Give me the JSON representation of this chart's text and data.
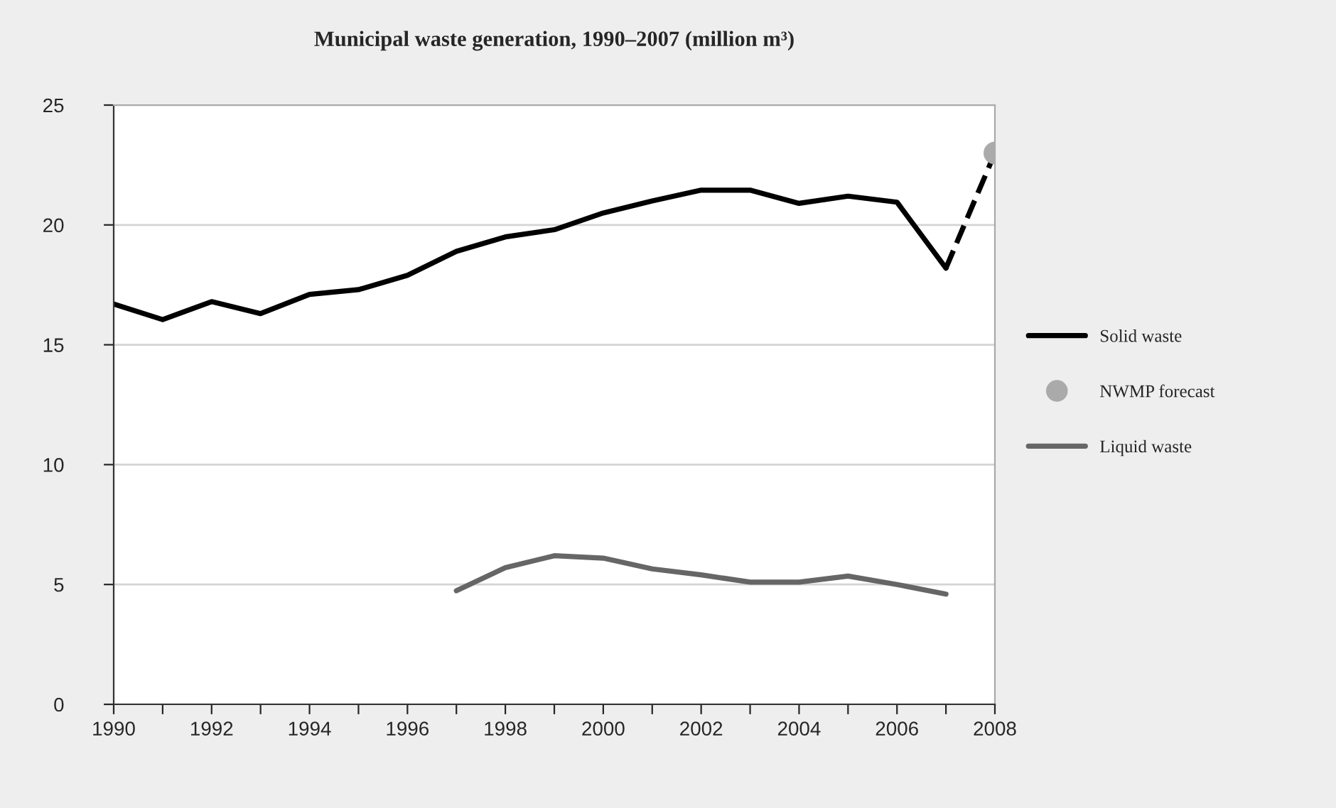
{
  "chart_data": {
    "type": "line",
    "title": "Municipal waste generation, 1990–2007 (million m³)",
    "xlim": [
      1990,
      2008
    ],
    "xticks": [
      1990,
      {
        "value": 1991,
        "label": null
      },
      1992,
      {
        "value": 1993,
        "label": null
      },
      1994,
      {
        "value": 1995,
        "label": null
      },
      1996,
      {
        "value": 1997,
        "label": null
      },
      1998,
      {
        "value": 1999,
        "label": null
      },
      2000,
      {
        "value": 2001,
        "label": null
      },
      2002,
      {
        "value": 2003,
        "label": null
      },
      2004,
      {
        "value": 2005,
        "label": null
      },
      2006,
      {
        "value": 2007,
        "label": null
      },
      2008
    ],
    "ylim": [
      0,
      25
    ],
    "yticks": [
      0,
      5,
      10,
      15,
      20,
      25
    ],
    "grid": "y",
    "legend": "right",
    "line_style": "solid",
    "series": [
      {
        "name": "Solid waste",
        "color": "#000000",
        "x": [
          1990,
          1991,
          1992,
          1993,
          1994,
          1995,
          1996,
          1997,
          1998,
          1999,
          2000,
          2001,
          2002,
          2003,
          2004,
          2005,
          2006,
          2007
        ],
        "values": [
          16.7,
          16.05,
          16.8,
          16.3,
          17.1,
          17.3,
          17.9,
          18.9,
          19.5,
          19.8,
          20.5,
          21.0,
          21.45,
          21.45,
          20.9,
          21.2,
          20.95,
          18.2
        ]
      },
      {
        "type": "line",
        "line_style": "dashed",
        "color": "#000000",
        "x": [
          2007,
          2008
        ],
        "values": [
          18.2,
          23.0
        ]
      },
      {
        "name": "NWMP forecast",
        "type": "scatter",
        "marker": "circle",
        "color": "#aaaaaa",
        "x": [
          2008
        ],
        "values": [
          23.0
        ]
      },
      {
        "name": "Liquid waste",
        "color": "#666666",
        "x": [
          1997,
          1998,
          1999,
          2000,
          2001,
          2002,
          2003,
          2004,
          2005,
          2006,
          2007
        ],
        "values": [
          4.74,
          5.7,
          6.2,
          6.1,
          5.65,
          5.4,
          5.1,
          5.1,
          5.35,
          5.0,
          4.6
        ]
      }
    ]
  }
}
